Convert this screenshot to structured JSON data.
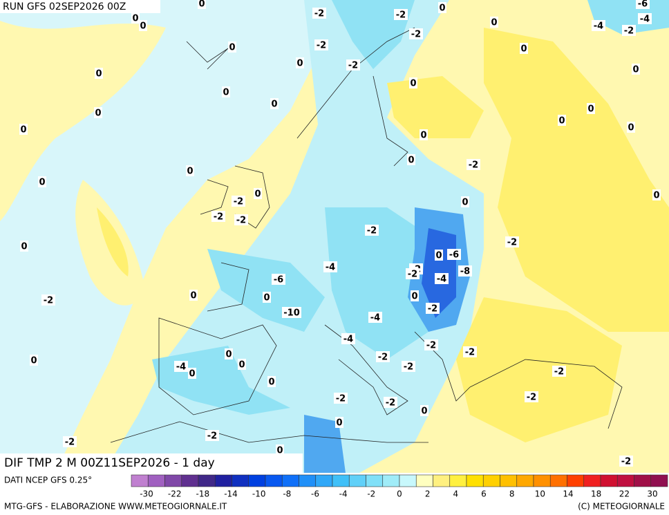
{
  "header": {
    "run": "RUN GFS 02SEP2026 00Z"
  },
  "map": {
    "caption": "DIF TMP 2 M 00Z11SEP2026 - 1 day",
    "labels": [
      0,
      -2,
      -2,
      0,
      -6,
      0,
      0,
      0,
      -4,
      -2,
      -4,
      -2,
      -2,
      0,
      0,
      -2,
      0,
      0,
      0,
      0,
      0,
      0,
      0,
      0,
      0,
      0,
      0,
      0,
      0,
      -2,
      0,
      0,
      0,
      -2,
      0,
      0,
      -2,
      -2,
      -2,
      -2,
      0,
      0,
      -6,
      -4,
      -2,
      -6,
      -2,
      -4,
      -8,
      0,
      0,
      -2,
      0,
      -2,
      -10,
      -4,
      -4,
      -2,
      -2,
      0,
      0,
      0,
      -2,
      -4,
      0,
      -2,
      -2,
      0,
      -2,
      -2,
      -2,
      0,
      0,
      -2,
      -2,
      0,
      -2,
      -2
    ]
  },
  "legend": {
    "source": "DATI NCEP GFS 0.25°",
    "colors": [
      "#c080d0",
      "#a060c0",
      "#8048a8",
      "#603090",
      "#402888",
      "#2020a0",
      "#1030c0",
      "#0040e0",
      "#0858f0",
      "#1070f8",
      "#2090f8",
      "#30a8f8",
      "#40c0f8",
      "#60d0f8",
      "#80e0f8",
      "#a0ecf8",
      "#c8f8fc",
      "#ffffc0",
      "#fff080",
      "#fff040",
      "#ffe000",
      "#ffd000",
      "#ffc000",
      "#ffa800",
      "#ff9000",
      "#ff7000",
      "#ff4000",
      "#f02020",
      "#d01030",
      "#c01040",
      "#a01048",
      "#901050"
    ],
    "ticks": [
      -30,
      -22,
      -18,
      -14,
      -10,
      -8,
      -6,
      -4,
      -2,
      0,
      2,
      4,
      6,
      8,
      10,
      14,
      18,
      22,
      30
    ]
  },
  "footer": {
    "left": "MTG-GFS - ELABORAZIONE WWW.METEOGIORNALE.IT",
    "right": "(C) METEOGIORNALE"
  }
}
